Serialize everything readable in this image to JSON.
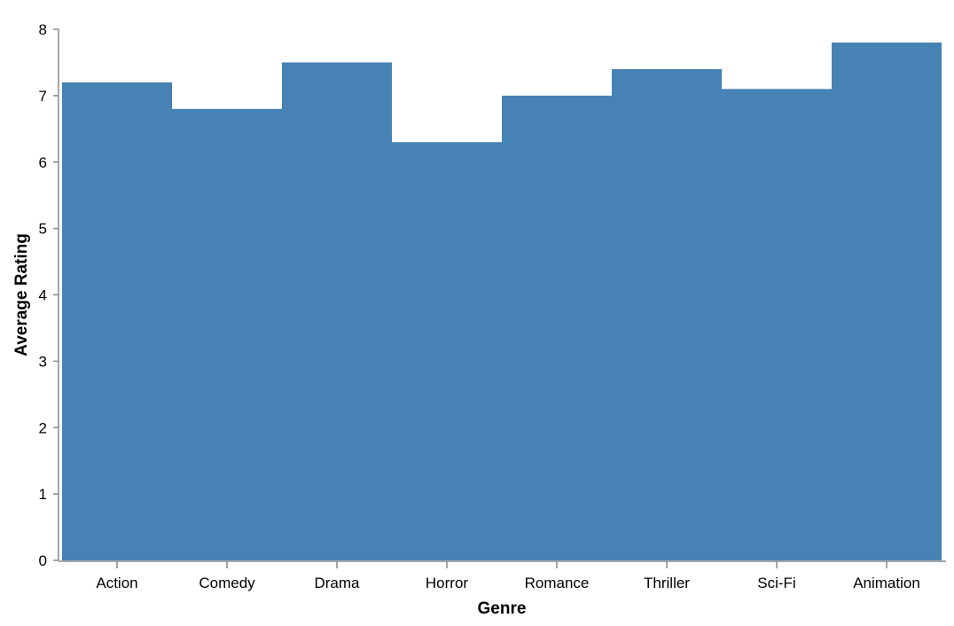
{
  "chart_data": {
    "type": "bar",
    "title": "",
    "xlabel": "Genre",
    "ylabel": "Average Rating",
    "categories": [
      "Action",
      "Comedy",
      "Drama",
      "Horror",
      "Romance",
      "Thriller",
      "Sci-Fi",
      "Animation"
    ],
    "values": [
      7.2,
      6.8,
      7.5,
      6.3,
      7.0,
      7.4,
      7.1,
      7.8
    ],
    "ylim": [
      0,
      8
    ],
    "yticks": [
      "0",
      "1",
      "2",
      "3",
      "4",
      "5",
      "6",
      "7",
      "8"
    ],
    "grid": false,
    "legend": "none",
    "colors": {
      "bar": "#4682b4",
      "axis": "#888888",
      "text": "#000000"
    }
  }
}
